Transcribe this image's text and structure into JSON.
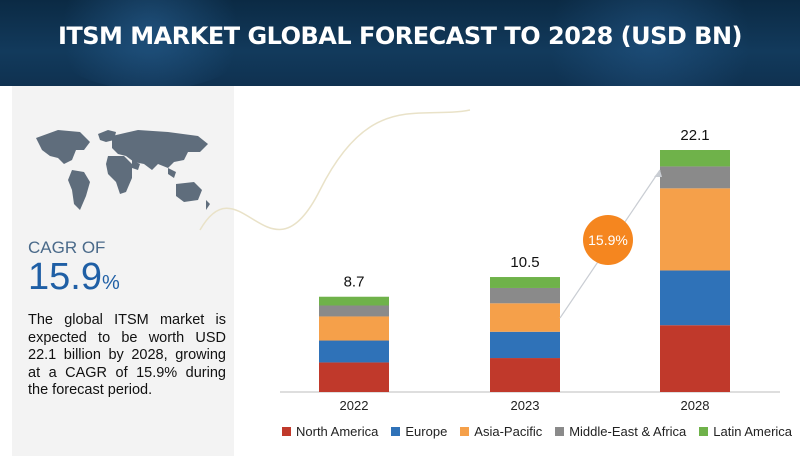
{
  "header": {
    "title": "ITSM MARKET GLOBAL FORECAST TO 2028 (USD BN)"
  },
  "left_panel": {
    "cagr_label": "CAGR OF",
    "cagr_value": "15.9",
    "cagr_unit": "%",
    "description": "The global ITSM market is expected to be worth USD 22.1 billion by 2028, growing at a CAGR of 15.9% during the forecast period."
  },
  "chart_data": {
    "type": "bar",
    "stacked": true,
    "title": "ITSM MARKET GLOBAL FORECAST TO 2028 (USD BN)",
    "categories": [
      "2022",
      "2023",
      "2028"
    ],
    "totals": [
      "8.7",
      "10.5",
      "22.1"
    ],
    "series": [
      {
        "name": "North America",
        "color": "#c0392b",
        "values": [
          2.7,
          3.1,
          6.1
        ]
      },
      {
        "name": "Europe",
        "color": "#2f72b8",
        "values": [
          2.0,
          2.4,
          5.0
        ]
      },
      {
        "name": "Asia-Pacific",
        "color": "#f5a04a",
        "values": [
          2.2,
          2.6,
          7.5
        ]
      },
      {
        "name": "Middle-East & Africa",
        "color": "#8a8a8a",
        "values": [
          1.0,
          1.4,
          2.0
        ]
      },
      {
        "name": "Latin America",
        "color": "#6fb24a",
        "values": [
          0.8,
          1.0,
          1.5
        ]
      }
    ],
    "cagr_badge": "15.9%",
    "ylim": [
      0,
      24
    ]
  }
}
